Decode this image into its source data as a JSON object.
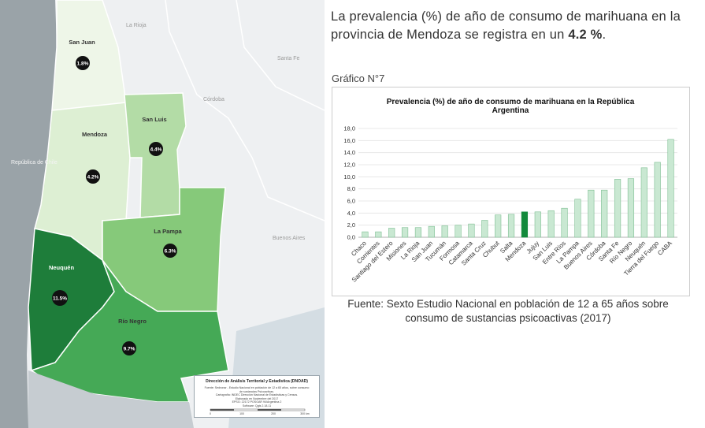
{
  "headline": {
    "text_before": "La prevalencia (%) de año de consumo de marihuana en la provincia de Mendoza se registra en un ",
    "highlight": "4.2 %",
    "text_after": "."
  },
  "chart_ref": "Gráfico N°7",
  "source": "Fuente: Sexto Estudio Nacional en población de 12 a 65 años sobre consumo de sustancias psicoactivas (2017)",
  "map": {
    "neighbors": [
      "La Rioja",
      "Santa Fe",
      "Córdoba",
      "República de Chile",
      "Buenos Aires"
    ],
    "provinces": [
      {
        "name": "San Juan",
        "value": "1.8%",
        "color": "#eef6e8"
      },
      {
        "name": "Mendoza",
        "value": "4.2%",
        "color": "#ddefd3"
      },
      {
        "name": "San Luis",
        "value": "4.4%",
        "color": "#b3dca6"
      },
      {
        "name": "La Pampa",
        "value": "6.3%",
        "color": "#86c97a"
      },
      {
        "name": "Neuquén",
        "value": "11.5%",
        "color": "#1e7d3a"
      },
      {
        "name": "Río Negro",
        "value": "9.7%",
        "color": "#45a956"
      }
    ],
    "note_title": "Dirección de Análisis Territorial y Estadística (DNOAD)",
    "note_lines": [
      "Fuente: Sedronar - Estudio Nacional en población de 12 a 65 años, sobre consumo",
      "de sustancias Psicoactivas.",
      "Cartografía: INDEC Dirección Nacional de Estadísticas y Censos.",
      "Elaborado en Noviembre del 2017",
      "EPSG: 22172 POSGAR 94/Argentina 2",
      "Software: Qgis 2.18.11"
    ],
    "scale_labels": [
      "0",
      "100",
      "200",
      "300 km"
    ]
  },
  "chart_data": {
    "type": "bar",
    "title": "Prevalencia (%) de año de consumo de marihuana en la República Argentina",
    "categories": [
      "Chaco",
      "Corrientes",
      "Santiago del Estero",
      "Misiones",
      "La Rioja",
      "San Juan",
      "Tucumán",
      "Formosa",
      "Catamarca",
      "Santa Cruz",
      "Chubut",
      "Salta",
      "Mendoza",
      "Jujuy",
      "San Luis",
      "Entre Ríos",
      "La Pampa",
      "Buenos Aires",
      "Córdoba",
      "Santa Fe",
      "Río Negro",
      "Neuquén",
      "Tierra del Fuego",
      "CABA"
    ],
    "values": [
      0.9,
      0.9,
      1.5,
      1.6,
      1.6,
      1.8,
      1.9,
      2.0,
      2.2,
      2.8,
      3.7,
      3.8,
      4.2,
      4.2,
      4.4,
      4.8,
      6.3,
      7.8,
      7.8,
      9.6,
      9.7,
      11.5,
      12.4,
      16.2
    ],
    "highlight_category": "Mendoza",
    "ylim": [
      0,
      18
    ],
    "yticks": [
      "0,0",
      "2,0",
      "4,0",
      "6,0",
      "8,0",
      "10,0",
      "12,0",
      "14,0",
      "16,0",
      "18,0"
    ],
    "grid": true,
    "colors": {
      "bar": "#c9e8d2",
      "bar_edge": "#7fbf93",
      "highlight": "#138a3c",
      "grid": "#e3e3e3"
    }
  }
}
